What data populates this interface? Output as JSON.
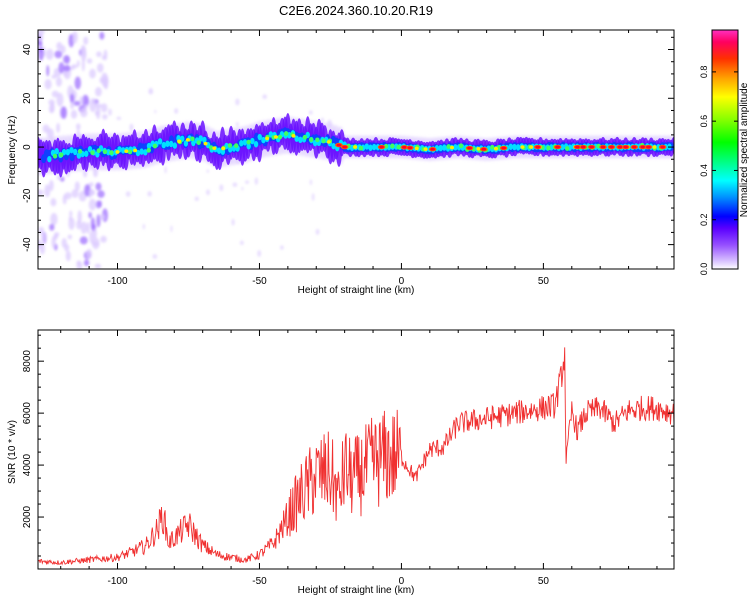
{
  "figure": {
    "title": "C2E6.2024.360.10.20.R19"
  },
  "chart_data": [
    {
      "type": "heatmap",
      "xlabel": "Height of straight line (km)",
      "ylabel": "Frequency (Hz)",
      "xlim": [
        -128,
        96
      ],
      "ylim": [
        -50,
        48
      ],
      "xticks": [
        -100,
        -50,
        0,
        50
      ],
      "yticks": [
        -40,
        -20,
        0,
        20,
        40
      ],
      "colorbar": {
        "label": "Normalized spectral amplitude",
        "range": [
          0,
          0.97
        ],
        "ticks": [
          "0.0",
          "0.2",
          "0.4",
          "0.6",
          "0.8"
        ],
        "colormap": [
          "#ffffff",
          "#dcc8ff",
          "#9650ff",
          "#5a00ff",
          "#0000ff",
          "#0090ff",
          "#00ffff",
          "#00ff80",
          "#00ff00",
          "#80ff00",
          "#ffff00",
          "#ffa000",
          "#ff3000",
          "#ff0060",
          "#ff30c0"
        ]
      },
      "ridge": {
        "x": [
          -128,
          -120,
          -110,
          -100,
          -90,
          -85,
          -80,
          -75,
          -70,
          -65,
          -60,
          -55,
          -50,
          -45,
          -40,
          -35,
          -30,
          -25,
          -20,
          -10,
          0,
          10,
          20,
          30,
          40,
          50,
          60,
          70,
          80,
          90,
          96
        ],
        "y": [
          -4,
          -3,
          -2,
          -2,
          -1,
          1,
          2,
          3,
          2,
          -1,
          0,
          1,
          3,
          4,
          5,
          4,
          3,
          2,
          0,
          0,
          0,
          -1,
          0,
          -1,
          0,
          0,
          0,
          0,
          0,
          0,
          0
        ]
      }
    },
    {
      "type": "line",
      "xlabel": "Height of straight line (km)",
      "ylabel": "SNR (10 * v/v)",
      "xlim": [
        -128,
        96
      ],
      "ylim": [
        0,
        9200
      ],
      "xticks": [
        -100,
        -50,
        0,
        50
      ],
      "yticks": [
        2000,
        4000,
        6000,
        8000
      ],
      "line_color": "#f03030",
      "series": [
        {
          "x": [
            -128,
            -120,
            -110,
            -100,
            -95,
            -90,
            -86,
            -84,
            -82,
            -78,
            -75,
            -70,
            -65,
            -60,
            -55,
            -50,
            -45,
            -40,
            -35,
            -30,
            -25,
            -22,
            -20,
            -18,
            -15,
            -10,
            -5,
            0,
            5,
            10,
            15,
            20,
            25,
            30,
            35,
            40,
            45,
            50,
            54,
            56,
            57.5,
            58,
            60,
            62,
            65,
            70,
            75,
            80,
            85,
            90,
            96
          ],
          "y": [
            300,
            250,
            350,
            450,
            650,
            900,
            1500,
            2100,
            1000,
            1400,
            1700,
            900,
            550,
            450,
            350,
            550,
            1000,
            2000,
            2900,
            3600,
            3700,
            2700,
            3900,
            3500,
            3600,
            4100,
            4300,
            4300,
            3500,
            4600,
            4700,
            5600,
            5700,
            5800,
            5900,
            6000,
            6100,
            6200,
            6300,
            7200,
            8300,
            4100,
            6100,
            5300,
            6000,
            6200,
            5600,
            6100,
            6200,
            6200,
            6000
          ]
        }
      ]
    }
  ]
}
